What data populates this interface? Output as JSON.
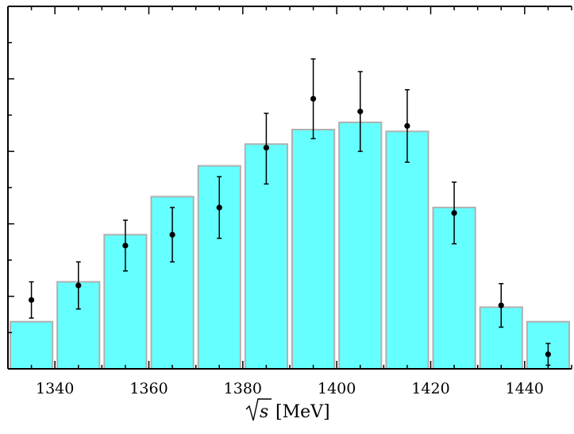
{
  "chart_data": {
    "type": "bar",
    "title": "",
    "xlabel_text": "[MeV]",
    "xlabel_symbol": "s",
    "xlim": [
      1330,
      1450
    ],
    "ylim": [
      0,
      100
    ],
    "x_ticks": [
      1340,
      1360,
      1380,
      1400,
      1420,
      1440
    ],
    "x_tick_labels": [
      "1340",
      "1360",
      "1380",
      "1400",
      "1420",
      "1440"
    ],
    "y_ticks_shown": false,
    "grid": false,
    "colors": {
      "bar_fill": "#66ffff",
      "bar_edge": "#b0b0b0",
      "points": "#000000"
    },
    "bars": [
      {
        "x": 1335,
        "y": 13
      },
      {
        "x": 1345,
        "y": 24
      },
      {
        "x": 1355,
        "y": 37
      },
      {
        "x": 1365,
        "y": 47.5
      },
      {
        "x": 1375,
        "y": 56
      },
      {
        "x": 1385,
        "y": 62
      },
      {
        "x": 1395,
        "y": 66
      },
      {
        "x": 1405,
        "y": 68
      },
      {
        "x": 1415,
        "y": 65.5
      },
      {
        "x": 1425,
        "y": 44.5
      },
      {
        "x": 1435,
        "y": 17
      },
      {
        "x": 1445,
        "y": 13
      }
    ],
    "points": [
      {
        "x": 1335,
        "y": 19,
        "err_low": 5,
        "err_high": 5
      },
      {
        "x": 1345,
        "y": 23,
        "err_low": 6.5,
        "err_high": 6.5
      },
      {
        "x": 1355,
        "y": 34,
        "err_low": 7,
        "err_high": 7
      },
      {
        "x": 1365,
        "y": 37,
        "err_low": 7.5,
        "err_high": 7.5
      },
      {
        "x": 1375,
        "y": 44.5,
        "err_low": 8.5,
        "err_high": 8.5
      },
      {
        "x": 1385,
        "y": 61,
        "err_low": 10,
        "err_high": 9.5
      },
      {
        "x": 1395,
        "y": 74.5,
        "err_low": 11,
        "err_high": 11
      },
      {
        "x": 1405,
        "y": 71,
        "err_low": 11,
        "err_high": 11
      },
      {
        "x": 1415,
        "y": 67,
        "err_low": 10,
        "err_high": 10
      },
      {
        "x": 1425,
        "y": 43,
        "err_low": 8.5,
        "err_high": 8.5
      },
      {
        "x": 1435,
        "y": 17.5,
        "err_low": 6,
        "err_high": 6
      },
      {
        "x": 1445,
        "y": 4,
        "err_low": 3,
        "err_high": 3
      }
    ]
  }
}
